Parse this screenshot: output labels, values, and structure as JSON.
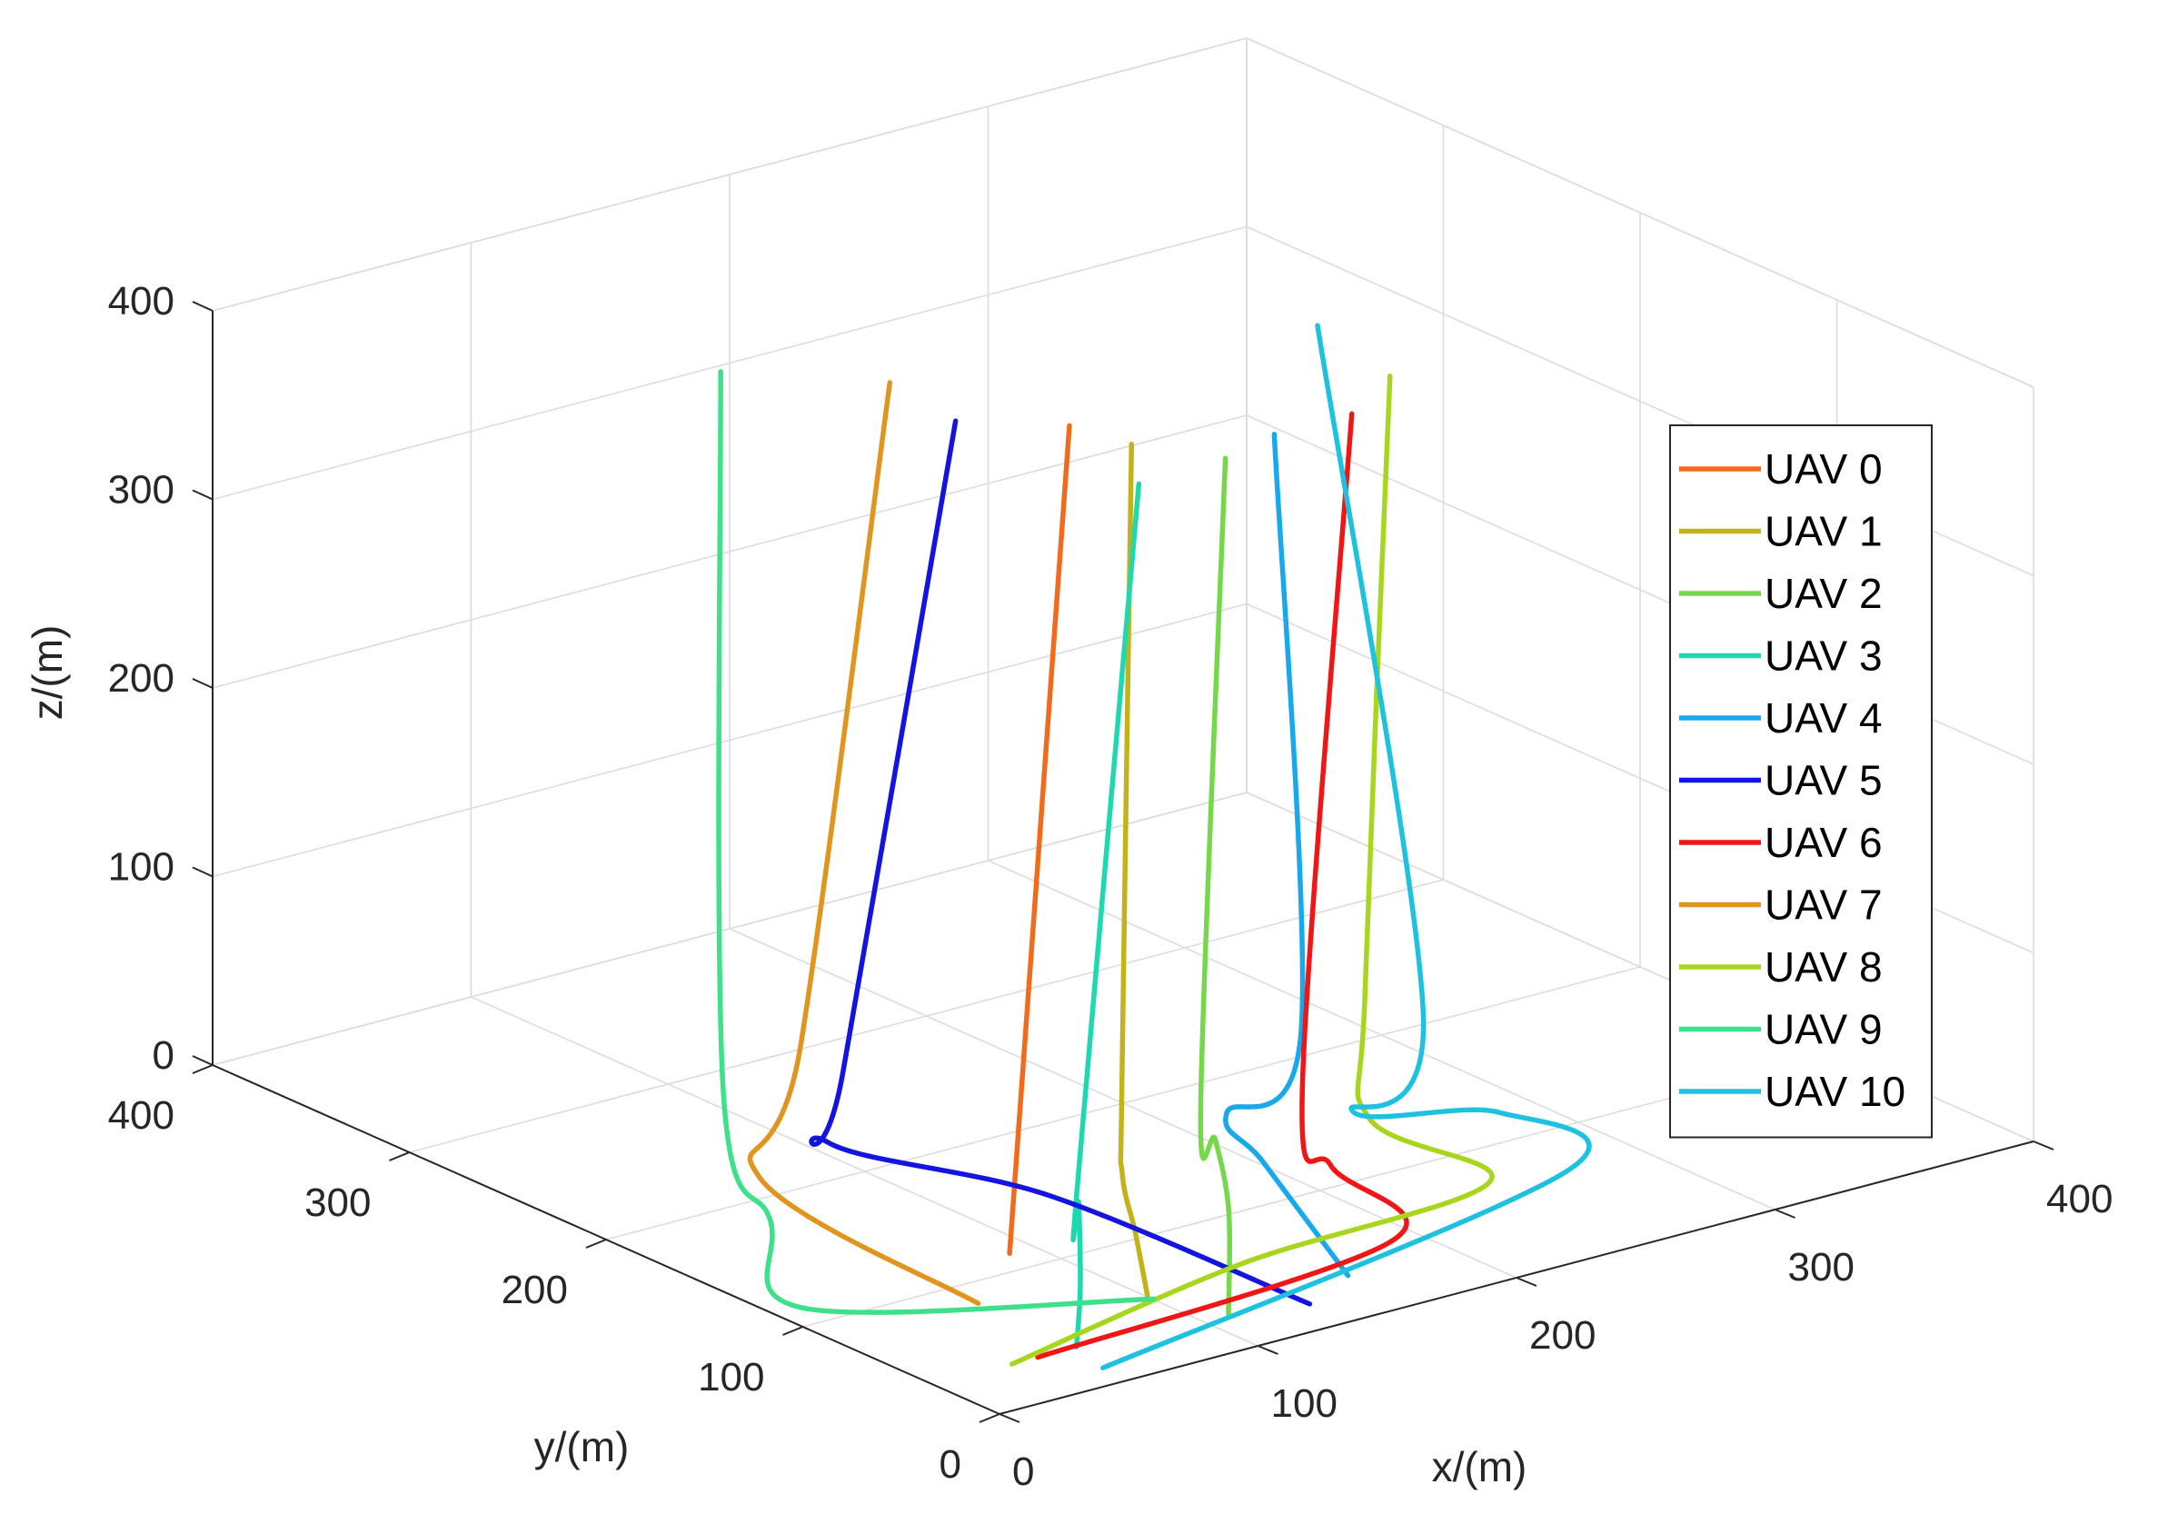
{
  "chart_data": {
    "type": "line",
    "title": "",
    "xlabel": "x/(m)",
    "ylabel": "y/(m)",
    "zlabel": "z/(m)",
    "xlim": [
      0,
      400
    ],
    "ylim": [
      0,
      400
    ],
    "zlim": [
      0,
      400
    ],
    "xticks": [
      "0",
      "100",
      "200",
      "300",
      "400"
    ],
    "yticks": [
      "0",
      "100",
      "200",
      "300",
      "400"
    ],
    "zticks": [
      "0",
      "100",
      "200",
      "300",
      "400"
    ],
    "grid": true,
    "legend_position": "right",
    "series": [
      {
        "name": "UAV 0",
        "color": "#f26b1d",
        "points": [
          [
            80,
            100,
            10
          ],
          [
            145,
            155,
            400
          ]
        ]
      },
      {
        "name": "UAV 1",
        "color": "#c4b21b",
        "points": [
          [
            88,
            40,
            10
          ],
          [
            86,
            44,
            45
          ],
          [
            84,
            48,
            75
          ],
          [
            90,
            56,
            120
          ],
          [
            150,
            130,
            400
          ]
        ]
      },
      {
        "name": "UAV 2",
        "color": "#74d84a",
        "points": [
          [
            100,
            15,
            10
          ],
          [
            110,
            28,
            55
          ],
          [
            120,
            48,
            80
          ],
          [
            122,
            58,
            95
          ],
          [
            165,
            102,
            400
          ]
        ]
      },
      {
        "name": "UAV 3",
        "color": "#1ed8b0",
        "points": [
          [
            45,
            20,
            10
          ],
          [
            48,
            22,
            40
          ],
          [
            52,
            28,
            80
          ],
          [
            56,
            34,
            85
          ],
          [
            130,
            100,
            400
          ]
        ]
      },
      {
        "name": "UAV 4",
        "color": "#18a8ec",
        "points": [
          [
            150,
            20,
            10
          ],
          [
            140,
            50,
            60
          ],
          [
            132,
            58,
            85
          ],
          [
            170,
            70,
            110
          ],
          [
            190,
            110,
            400
          ]
        ]
      },
      {
        "name": "UAV 5",
        "color": "#1414e0",
        "points": [
          [
            120,
            0,
            15
          ],
          [
            80,
            80,
            50
          ],
          [
            40,
            140,
            65
          ],
          [
            46,
            140,
            100
          ],
          [
            120,
            180,
            400
          ]
        ]
      },
      {
        "name": "UAV 6",
        "color": "#f01616",
        "points": [
          [
            30,
            20,
            10
          ],
          [
            175,
            30,
            15
          ],
          [
            170,
            55,
            45
          ],
          [
            172,
            72,
            80
          ],
          [
            220,
            110,
            400
          ]
        ]
      },
      {
        "name": "UAV 7",
        "color": "#e0961e",
        "points": [
          [
            45,
            70,
            10
          ],
          [
            25,
            155,
            45
          ],
          [
            60,
            180,
            90
          ],
          [
            125,
            220,
            400
          ]
        ]
      },
      {
        "name": "UAV 8",
        "color": "#a8d61e",
        "points": [
          [
            20,
            20,
            10
          ],
          [
            120,
            35,
            20
          ],
          [
            220,
            40,
            25
          ],
          [
            200,
            75,
            50
          ],
          [
            210,
            90,
            110
          ],
          [
            250,
            130,
            400
          ]
        ]
      },
      {
        "name": "UAV 9",
        "color": "#3ee08a",
        "points": [
          [
            90,
            40,
            10
          ],
          [
            0,
            100,
            10
          ],
          [
            10,
            130,
            40
          ],
          [
            30,
            180,
            80
          ],
          [
            90,
            260,
            400
          ]
        ]
      },
      {
        "name": "UAV 10",
        "color": "#1ec2e0",
        "points": [
          [
            40,
            0,
            10
          ],
          [
            250,
            40,
            20
          ],
          [
            250,
            75,
            35
          ],
          [
            205,
            90,
            45
          ],
          [
            240,
            100,
            80
          ],
          [
            260,
            180,
            400
          ]
        ]
      }
    ]
  }
}
